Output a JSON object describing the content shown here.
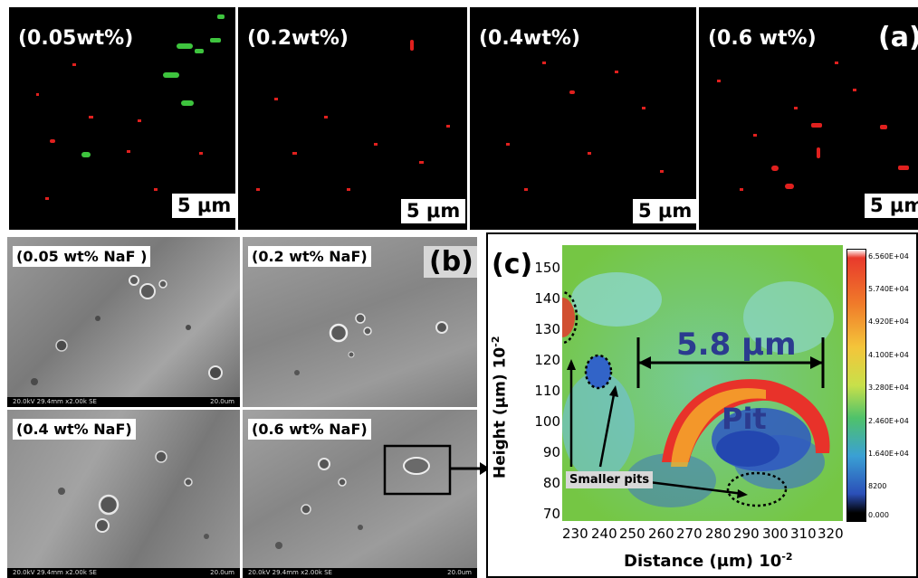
{
  "panel_a": {
    "letter": "(a)",
    "tiles": [
      {
        "label": "(0.05wt%)",
        "scale": "5 μm"
      },
      {
        "label": "(0.2wt%)",
        "scale": "5 μm"
      },
      {
        "label": "(0.4wt%)",
        "scale": "5 μm"
      },
      {
        "label": "(0.6 wt%)",
        "scale": "5 μm"
      }
    ]
  },
  "panel_b": {
    "letter": "(b)",
    "tiles": [
      {
        "label": "(0.05 wt% NaF )",
        "info": "20.0kV 29.4mm x2.00k SE",
        "scale": "20.0um"
      },
      {
        "label": "(0.2 wt% NaF)",
        "info": "20.0kV 29.4mm x2.00k SE",
        "scale": "20.0um"
      },
      {
        "label": "(0.4 wt% NaF)",
        "info": "20.0kV 29.4mm x2.00k SE",
        "scale": "20.0um"
      },
      {
        "label": "(0.6 wt% NaF)",
        "info": "20.0kV 29.4mm x2.00k SE",
        "scale": "20.0um"
      }
    ]
  },
  "panel_c": {
    "letter": "(c)",
    "x_label": "Distance (μm) 10",
    "x_exp": "-2",
    "y_label": "Height (μm)  10",
    "y_exp": "-2",
    "x_ticks": [
      "230",
      "240",
      "250",
      "260",
      "270",
      "280",
      "290",
      "300",
      "310",
      "320"
    ],
    "y_ticks": [
      "150",
      "140",
      "130",
      "120",
      "110",
      "100",
      "90",
      "80",
      "70"
    ],
    "measure": "5.8 μm",
    "pit_label": "Pit",
    "smaller_pits": "Smaller pits",
    "colorbar_ticks": [
      "6.560E+04",
      "5.740E+04",
      "4.920E+04",
      "4.100E+04",
      "3.280E+04",
      "2.460E+04",
      "1.640E+04",
      "8200",
      "0.000"
    ]
  }
}
